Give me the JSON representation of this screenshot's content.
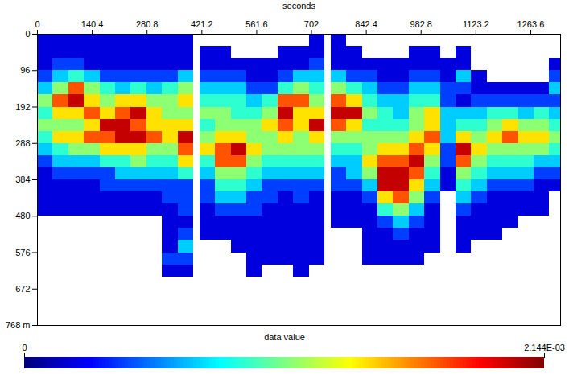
{
  "chart_data": {
    "type": "heatmap",
    "x_label": "seconds",
    "colorbar_label": "data value",
    "xlim": [
      0,
      1340
    ],
    "xticks": [
      0,
      140.4,
      280.8,
      421.2,
      561.6,
      702,
      842.4,
      982.8,
      1123.2,
      1263.6
    ],
    "ylim": [
      0,
      768
    ],
    "yticks": [
      0,
      96,
      192,
      288,
      384,
      480,
      576,
      672,
      {
        "value": 768,
        "label": "768 m"
      }
    ],
    "color_range": [
      0,
      0.002144
    ],
    "color_ticks": [
      0,
      {
        "value": 0.002144,
        "label": "2.144E-03"
      }
    ],
    "x_bins": [
      0,
      40,
      80,
      120,
      160,
      200,
      240,
      280,
      320,
      360,
      400,
      416,
      456,
      496,
      536,
      576,
      616,
      656,
      696,
      736,
      752,
      792,
      832,
      872,
      912,
      952,
      992,
      1032,
      1072,
      1112,
      1152,
      1192,
      1232,
      1272,
      1312,
      1340
    ],
    "y_bins": [
      0,
      32,
      64,
      96,
      128,
      160,
      192,
      224,
      256,
      288,
      320,
      352,
      384,
      416,
      448,
      480,
      512,
      544,
      576,
      608,
      640,
      672
    ],
    "cells": [
      [
        0.0002,
        0.0002,
        0.0002,
        0.0004,
        0.0007,
        0.0011,
        0.0009,
        0.0011,
        0.0009,
        0.0007,
        0.0004,
        0.0002,
        0.0002,
        0.0002,
        0.0002,
        null,
        null,
        null,
        null,
        null,
        null
      ],
      [
        0.0002,
        0.0002,
        0.0004,
        0.0007,
        0.0011,
        0.0017,
        0.0014,
        0.0011,
        0.0014,
        0.0009,
        0.0007,
        0.0004,
        0.0002,
        0.0002,
        0.0002,
        null,
        null,
        null,
        null,
        null,
        null
      ],
      [
        0.0002,
        0.0002,
        0.0004,
        0.0009,
        0.0017,
        0.002,
        0.0014,
        0.0011,
        0.0014,
        0.0011,
        0.0007,
        0.0004,
        0.0002,
        0.0002,
        0.0002,
        null,
        null,
        null,
        null,
        null,
        null
      ],
      [
        0.0002,
        0.0002,
        0.0002,
        0.0007,
        0.0011,
        0.0014,
        0.0017,
        0.0014,
        0.0017,
        0.0011,
        0.0007,
        0.0004,
        0.0002,
        0.0002,
        0.0002,
        null,
        null,
        null,
        null,
        null,
        null
      ],
      [
        0.0002,
        0.0002,
        0.0002,
        0.0004,
        0.0009,
        0.0011,
        0.0014,
        0.002,
        0.0017,
        0.0014,
        0.0009,
        0.0004,
        0.0004,
        0.0002,
        0.0002,
        null,
        null,
        null,
        null,
        null,
        null
      ],
      [
        0.0002,
        0.0002,
        0.0002,
        0.0004,
        0.0007,
        0.0014,
        0.0017,
        0.002,
        0.002,
        0.0014,
        0.0009,
        0.0007,
        0.0004,
        0.0002,
        0.0002,
        null,
        null,
        null,
        null,
        null,
        null
      ],
      [
        0.0002,
        0.0002,
        0.0002,
        0.0004,
        0.0009,
        0.0014,
        0.002,
        0.0017,
        0.002,
        0.0014,
        0.0011,
        0.0007,
        0.0004,
        0.0002,
        0.0002,
        null,
        null,
        null,
        null,
        null,
        null
      ],
      [
        0.0002,
        0.0002,
        0.0002,
        0.0004,
        0.0007,
        0.0011,
        0.0014,
        0.0014,
        0.0017,
        0.0011,
        0.0009,
        0.0007,
        0.0004,
        0.0002,
        0.0002,
        null,
        null,
        null,
        null,
        null,
        null
      ],
      [
        0.0002,
        0.0002,
        0.0002,
        0.0004,
        0.0009,
        0.0011,
        0.0011,
        0.0014,
        0.0014,
        0.0011,
        0.0009,
        0.0007,
        0.0004,
        0.0004,
        0.0002,
        0.0002,
        0.0002,
        0.0002,
        0.0004,
        0.0002,
        null
      ],
      [
        0.0002,
        0.0002,
        0.0002,
        0.0007,
        0.0011,
        0.0014,
        0.0011,
        0.0014,
        0.002,
        0.0017,
        0.0014,
        0.0009,
        0.0004,
        0.0004,
        0.0004,
        0.0002,
        0.0004,
        0.0007,
        0.0004,
        0.0002,
        null
      ],
      [
        null,
        null,
        null,
        null,
        null,
        null,
        null,
        null,
        null,
        null,
        null,
        null,
        null,
        null,
        null,
        null,
        null,
        null,
        null,
        null,
        null
      ],
      [
        null,
        0.0002,
        0.0002,
        0.0004,
        0.0007,
        0.0009,
        0.0011,
        0.0009,
        0.0011,
        0.0014,
        0.0009,
        0.0007,
        0.0004,
        0.0004,
        0.0002,
        0.0002,
        0.0002,
        null,
        null,
        null,
        null
      ],
      [
        null,
        0.0002,
        0.0002,
        0.0004,
        0.0007,
        0.0009,
        0.0011,
        0.0011,
        0.0014,
        0.0017,
        0.0017,
        0.0011,
        0.0009,
        0.0007,
        0.0004,
        0.0002,
        0.0002,
        null,
        null,
        null,
        null
      ],
      [
        null,
        null,
        0.0002,
        0.0004,
        0.0007,
        0.0009,
        0.0009,
        0.0011,
        0.0014,
        0.002,
        0.0017,
        0.0011,
        0.0009,
        0.0007,
        0.0004,
        0.0002,
        0.0002,
        0.0002,
        null,
        null,
        null
      ],
      [
        null,
        null,
        0.0002,
        0.0002,
        0.0004,
        0.0007,
        0.0009,
        0.0011,
        0.0011,
        0.0014,
        0.0011,
        0.0009,
        0.0007,
        0.0004,
        0.0004,
        0.0002,
        0.0002,
        0.0002,
        0.0002,
        0.0002,
        null
      ],
      [
        null,
        null,
        0.0002,
        0.0002,
        0.0004,
        0.0009,
        0.0011,
        0.0014,
        0.0011,
        0.0011,
        0.0009,
        0.0007,
        0.0004,
        0.0004,
        0.0002,
        0.0002,
        0.0002,
        0.0002,
        0.0002,
        null,
        null
      ],
      [
        null,
        0.0002,
        0.0002,
        0.0004,
        0.0009,
        0.0017,
        0.002,
        0.0017,
        0.0014,
        0.0011,
        0.0009,
        0.0007,
        0.0004,
        0.0002,
        0.0002,
        0.0002,
        0.0002,
        0.0002,
        0.0002,
        null,
        null
      ],
      [
        null,
        0.0002,
        0.0002,
        0.0007,
        0.0011,
        0.0017,
        0.0014,
        0.0014,
        0.0011,
        0.0011,
        0.0009,
        0.0007,
        0.0004,
        0.0004,
        0.0002,
        0.0002,
        0.0002,
        0.0002,
        0.0002,
        0.0002,
        null
      ],
      [
        0.0002,
        0.0002,
        0.0004,
        0.0007,
        0.0009,
        0.0011,
        0.0014,
        0.002,
        0.0014,
        0.0011,
        0.0009,
        0.0007,
        0.0004,
        0.0002,
        0.0002,
        0.0002,
        0.0002,
        0.0002,
        0.0002,
        null,
        null
      ],
      [
        null,
        null,
        null,
        null,
        null,
        null,
        null,
        null,
        null,
        null,
        null,
        null,
        null,
        null,
        null,
        null,
        null,
        null,
        null,
        null,
        null
      ],
      [
        0.0002,
        0.0002,
        0.0002,
        0.0007,
        0.0011,
        0.0017,
        0.002,
        0.0017,
        0.0011,
        0.0009,
        0.0007,
        0.0004,
        0.0004,
        0.0002,
        0.0002,
        0.0002,
        null,
        null,
        null,
        null,
        null
      ],
      [
        null,
        0.0002,
        0.0002,
        0.0004,
        0.0009,
        0.0014,
        0.002,
        0.0014,
        0.0011,
        0.0009,
        0.0007,
        0.0007,
        0.0004,
        0.0002,
        0.0002,
        0.0002,
        null,
        null,
        null,
        null,
        null
      ],
      [
        null,
        null,
        0.0002,
        0.0004,
        0.0007,
        0.0009,
        0.0011,
        0.0009,
        0.0011,
        0.0011,
        0.0014,
        0.0011,
        0.0007,
        0.0004,
        0.0002,
        0.0002,
        0.0002,
        0.0002,
        0.0002,
        null,
        null
      ],
      [
        null,
        null,
        0.0002,
        0.0002,
        0.0004,
        0.0007,
        0.0009,
        0.0009,
        0.0011,
        0.0014,
        0.0017,
        0.002,
        0.002,
        0.0014,
        0.0009,
        0.0004,
        0.0002,
        0.0002,
        0.0002,
        null,
        null
      ],
      [
        null,
        null,
        0.0002,
        0.0002,
        0.0004,
        0.0007,
        0.0007,
        0.0009,
        0.0011,
        0.0014,
        0.0017,
        0.002,
        0.002,
        0.0017,
        0.0011,
        0.0007,
        0.0004,
        0.0002,
        0.0002,
        null,
        null
      ],
      [
        null,
        0.0002,
        0.0002,
        0.0004,
        0.0007,
        0.0009,
        0.0011,
        0.0011,
        0.0014,
        0.0017,
        0.002,
        0.0017,
        0.0014,
        0.0011,
        0.0007,
        0.0004,
        0.0002,
        0.0002,
        0.0002,
        null,
        null
      ],
      [
        null,
        0.0002,
        0.0002,
        0.0004,
        0.0007,
        0.0009,
        0.0014,
        0.0014,
        0.0017,
        0.0014,
        0.0011,
        0.0009,
        0.0007,
        0.0004,
        0.0002,
        0.0002,
        0.0002,
        0.0002,
        null,
        null,
        null
      ],
      [
        null,
        null,
        0.0002,
        0.0002,
        0.0004,
        0.0004,
        0.0007,
        0.0007,
        0.0007,
        0.0004,
        0.0004,
        0.0002,
        0.0002,
        null,
        null,
        null,
        null,
        null,
        null,
        null,
        null
      ],
      [
        null,
        0.0002,
        0.0002,
        0.0007,
        0.0004,
        0.0002,
        0.0007,
        0.0009,
        0.0014,
        0.002,
        0.0017,
        0.0011,
        0.0009,
        0.0007,
        0.0004,
        0.0002,
        0.0002,
        0.0002,
        null,
        null,
        null
      ],
      [
        null,
        null,
        null,
        0.0002,
        0.0002,
        0.0004,
        0.0007,
        0.0009,
        0.0011,
        0.0014,
        0.0011,
        0.0009,
        0.0007,
        0.0004,
        0.0002,
        0.0002,
        0.0002,
        null,
        null,
        null,
        null
      ],
      [
        null,
        null,
        null,
        null,
        0.0002,
        0.0004,
        0.0009,
        0.0011,
        0.0014,
        0.0011,
        0.0009,
        0.0007,
        0.0004,
        0.0002,
        0.0002,
        0.0002,
        0.0002,
        null,
        null,
        null,
        null
      ],
      [
        null,
        null,
        null,
        null,
        0.0002,
        0.0004,
        0.0009,
        0.0014,
        0.0017,
        0.0011,
        0.0009,
        0.0007,
        0.0004,
        0.0002,
        0.0002,
        0.0002,
        null,
        null,
        null,
        null,
        null
      ],
      [
        null,
        null,
        null,
        null,
        0.0002,
        0.0004,
        0.0007,
        0.0011,
        0.0014,
        0.0011,
        0.0009,
        0.0007,
        0.0004,
        0.0002,
        0.0002,
        null,
        null,
        null,
        null,
        null,
        null
      ],
      [
        null,
        null,
        null,
        null,
        0.0002,
        0.0004,
        0.0009,
        0.0011,
        0.0014,
        0.0011,
        0.0007,
        0.0004,
        0.0002,
        0.0002,
        0.0002,
        null,
        null,
        null,
        null,
        null,
        null
      ],
      [
        null,
        null,
        0.0002,
        0.0004,
        0.0007,
        0.0004,
        0.0007,
        0.0009,
        0.0011,
        0.0009,
        0.0007,
        0.0004,
        0.0002,
        null,
        null,
        null,
        null,
        null,
        null,
        null,
        null
      ]
    ]
  }
}
